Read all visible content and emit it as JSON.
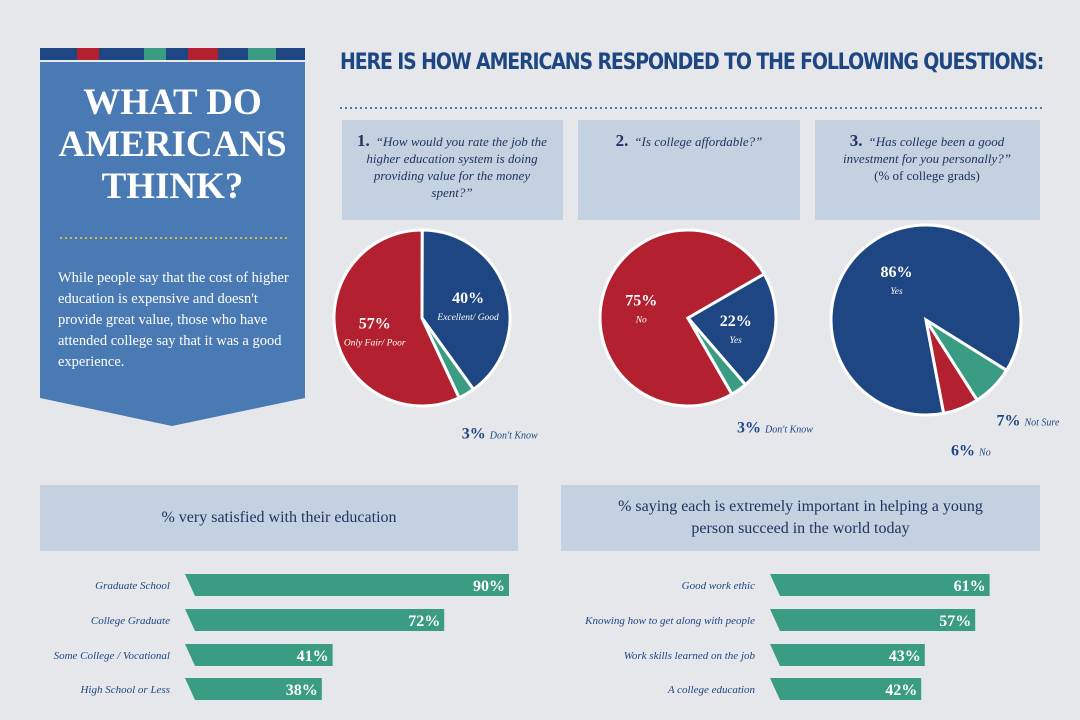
{
  "sidebar": {
    "title": "WHAT DO AMERICANS THINK?",
    "text": "While people say that the cost of higher education is expensive and doesn't provide great value, those who have attended college say that it was a good experience."
  },
  "heading": "HERE IS HOW AMERICANS RESPONDED TO THE FOLLOWING QUESTIONS:",
  "chart_data": [
    {
      "type": "pie",
      "number": "1.",
      "title": "“How would you rate the job the higher education system is doing providing value for the money spent?”",
      "categories": [
        "Only Fair/ Poor",
        "Excellent/ Good",
        "Don't Know"
      ],
      "values": [
        57,
        40,
        3
      ],
      "value_labels": [
        "57%",
        "40%",
        "3%"
      ],
      "colors": [
        "#b3202f",
        "#1d4683",
        "#3a9c83"
      ]
    },
    {
      "type": "pie",
      "number": "2.",
      "title": "“Is college affordable?”",
      "categories": [
        "No",
        "Yes",
        "Don't Know"
      ],
      "values": [
        75,
        22,
        3
      ],
      "value_labels": [
        "75%",
        "22%",
        "3%"
      ],
      "colors": [
        "#b3202f",
        "#1d4683",
        "#3a9c83"
      ]
    },
    {
      "type": "pie",
      "number": "3.",
      "title": "“Has college been a good investment for you personally?”",
      "subtitle": "(% of college grads)",
      "categories": [
        "Yes",
        "No",
        "Not Sure"
      ],
      "values": [
        86,
        6,
        7
      ],
      "value_labels": [
        "86%",
        "6%",
        "7%"
      ],
      "colors": [
        "#1d4683",
        "#b3202f",
        "#3a9c83"
      ]
    },
    {
      "type": "bar",
      "title": "% very satisfied with their education",
      "categories": [
        "Graduate School",
        "College Graduate",
        "Some College / Vocational",
        "High School or Less"
      ],
      "values": [
        90,
        72,
        41,
        38
      ],
      "value_labels": [
        "90%",
        "72%",
        "41%",
        "38%"
      ],
      "color": "#3a9c83"
    },
    {
      "type": "bar",
      "title": "% saying each is extremely important in helping a young person succeed in the world today",
      "categories": [
        "Good work ethic",
        "Knowing how to get along with people",
        "Work skills learned on the job",
        "A college education"
      ],
      "values": [
        61,
        57,
        43,
        42
      ],
      "value_labels": [
        "61%",
        "57%",
        "43%",
        "42%"
      ],
      "color": "#3a9c83"
    }
  ]
}
